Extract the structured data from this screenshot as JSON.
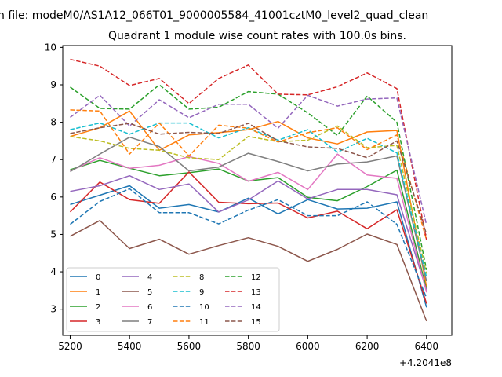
{
  "figure": {
    "suptitle": "n file: modeM0/AS1A12_066T01_9000005584_41001cztM0_level2_quad_clean"
  },
  "chart_data": {
    "type": "line",
    "title": "Quadrant 1 module wise count rates with 100.0s bins.",
    "xlabel": "",
    "ylabel": "",
    "x_offset_label": "+4.2041e8",
    "xlim": [
      5175,
      6485
    ],
    "ylim": [
      2.3,
      10.05
    ],
    "x_ticks": [
      5200,
      5400,
      5600,
      5800,
      6000,
      6200,
      6400
    ],
    "y_ticks": [
      3,
      4,
      5,
      6,
      7,
      8,
      9,
      10
    ],
    "grid": false,
    "legend_position": "lower-left",
    "x": [
      5200,
      5300,
      5400,
      5500,
      5600,
      5700,
      5800,
      5900,
      6000,
      6100,
      6200,
      6300,
      6400
    ],
    "series": [
      {
        "name": "0",
        "color": "#1f77b4",
        "dash": "solid",
        "values": [
          5.8,
          6.05,
          6.3,
          5.7,
          5.8,
          5.6,
          5.97,
          5.55,
          5.93,
          5.68,
          5.7,
          5.87,
          3.05
        ]
      },
      {
        "name": "1",
        "color": "#ff7f0e",
        "dash": "solid",
        "values": [
          7.62,
          7.85,
          8.3,
          7.25,
          7.66,
          7.72,
          7.8,
          8.02,
          7.58,
          7.42,
          7.74,
          7.78,
          3.6
        ]
      },
      {
        "name": "2",
        "color": "#2ca02c",
        "dash": "solid",
        "values": [
          6.73,
          6.98,
          6.77,
          6.57,
          6.65,
          6.75,
          6.43,
          6.52,
          5.99,
          5.9,
          6.28,
          6.72,
          3.52
        ]
      },
      {
        "name": "3",
        "color": "#d62728",
        "dash": "solid",
        "values": [
          5.6,
          6.4,
          5.93,
          5.83,
          6.67,
          5.86,
          5.82,
          5.84,
          5.44,
          5.62,
          5.15,
          5.66,
          3.15
        ]
      },
      {
        "name": "4",
        "color": "#9467bd",
        "dash": "solid",
        "values": [
          6.15,
          6.3,
          6.57,
          6.2,
          6.35,
          5.6,
          5.92,
          6.43,
          5.95,
          6.2,
          6.2,
          6.06,
          3.5
        ]
      },
      {
        "name": "5",
        "color": "#8c564b",
        "dash": "solid",
        "values": [
          4.95,
          5.37,
          4.62,
          4.87,
          4.47,
          4.7,
          4.91,
          4.68,
          4.28,
          4.6,
          5.01,
          4.73,
          2.68
        ]
      },
      {
        "name": "6",
        "color": "#e377c2",
        "dash": "solid",
        "values": [
          6.7,
          7.05,
          6.77,
          6.85,
          7.08,
          6.9,
          6.42,
          6.66,
          6.2,
          7.15,
          6.59,
          6.5,
          3.45
        ]
      },
      {
        "name": "7",
        "color": "#7f7f7f",
        "dash": "solid",
        "values": [
          6.68,
          7.15,
          7.6,
          7.35,
          6.7,
          6.8,
          7.17,
          6.95,
          6.7,
          6.88,
          6.94,
          7.1,
          3.75
        ]
      },
      {
        "name": "8",
        "color": "#bcbd22",
        "dash": "dashed",
        "values": [
          7.62,
          7.5,
          7.3,
          7.25,
          7.05,
          7.0,
          7.62,
          7.48,
          7.52,
          7.9,
          7.32,
          7.38,
          3.95
        ]
      },
      {
        "name": "9",
        "color": "#17becf",
        "dash": "dashed",
        "values": [
          7.8,
          7.98,
          7.68,
          7.98,
          7.98,
          7.58,
          7.85,
          7.52,
          7.8,
          7.2,
          7.57,
          7.18,
          3.85
        ]
      },
      {
        "name": "10",
        "color": "#1f77b4",
        "dash": "dashed",
        "values": [
          5.27,
          5.88,
          6.22,
          5.58,
          5.58,
          5.28,
          5.65,
          5.93,
          5.5,
          5.5,
          5.87,
          5.27,
          3.3
        ]
      },
      {
        "name": "11",
        "color": "#ff7f0e",
        "dash": "dashed",
        "values": [
          8.33,
          8.3,
          7.15,
          7.98,
          7.1,
          7.92,
          7.84,
          7.47,
          7.72,
          7.85,
          7.27,
          7.66,
          4.85
        ]
      },
      {
        "name": "12",
        "color": "#2ca02c",
        "dash": "dashed",
        "values": [
          8.94,
          8.37,
          8.35,
          9.0,
          8.35,
          8.4,
          8.82,
          8.75,
          8.25,
          7.65,
          8.7,
          8.0,
          4.05
        ]
      },
      {
        "name": "13",
        "color": "#d62728",
        "dash": "dashed",
        "values": [
          9.68,
          9.5,
          8.98,
          9.17,
          8.5,
          9.17,
          9.53,
          8.75,
          8.73,
          8.95,
          9.32,
          8.9,
          4.85
        ]
      },
      {
        "name": "14",
        "color": "#9467bd",
        "dash": "dashed",
        "values": [
          8.13,
          8.72,
          7.9,
          8.6,
          8.12,
          8.48,
          8.48,
          7.84,
          8.72,
          8.43,
          8.62,
          8.65,
          5.25
        ]
      },
      {
        "name": "15",
        "color": "#8c564b",
        "dash": "dashed",
        "values": [
          7.7,
          7.85,
          7.97,
          7.68,
          7.73,
          7.7,
          7.97,
          7.5,
          7.34,
          7.3,
          7.05,
          7.5,
          5.0
        ]
      }
    ]
  }
}
